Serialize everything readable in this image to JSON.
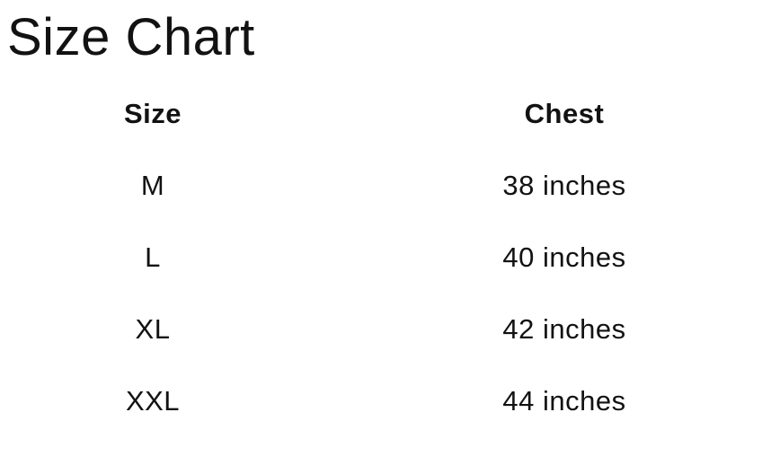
{
  "page": {
    "title": "Size Chart"
  },
  "size_chart": {
    "columns": [
      {
        "label": "Size"
      },
      {
        "label": "Chest"
      }
    ],
    "rows": [
      {
        "size": "M",
        "chest": "38 inches"
      },
      {
        "size": "L",
        "chest": "40 inches"
      },
      {
        "size": "XL",
        "chest": "42 inches"
      },
      {
        "size": "XXL",
        "chest": "44 inches"
      }
    ]
  },
  "colors": {
    "background": "#ffffff",
    "text": "#121212"
  }
}
